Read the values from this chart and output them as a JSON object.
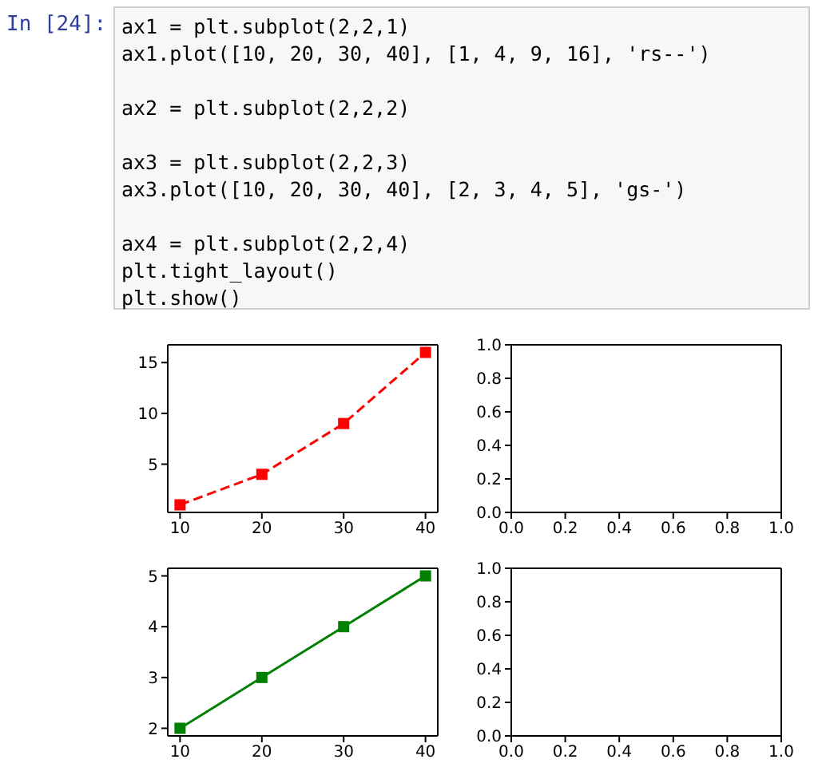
{
  "chart_data": [
    {
      "type": "line",
      "x": [
        10,
        20,
        30,
        40
      ],
      "series": [
        {
          "color": "#ff0000",
          "values": [
            1,
            4,
            9,
            16
          ]
        }
      ],
      "marker": "square",
      "line_style": "dashed",
      "xlim": [
        8.5,
        41.5
      ],
      "xticks": [
        10,
        20,
        30,
        40
      ],
      "ylim": [
        0.25,
        16.75
      ],
      "yticks": [
        5,
        10,
        15
      ],
      "grid": false,
      "legend": false,
      "annotations": [
        "In [24]:",
        "ax1 = plt.subplot(2,2,1)\nax1.plot([10, 20, 30, 40], [1, 4, 9, 16], 'rs--')\n\nax2 = plt.subplot(2,2,2)\n\nax3 = plt.subplot(2,2,3)\nax3.plot([10, 20, 30, 40], [2, 3, 4, 5], 'gs-')\n\nax4 = plt.subplot(2,2,4)\nplt.tight_layout()\nplt.show()"
      ]
    },
    {
      "type": "line",
      "xlim": [
        0,
        1
      ],
      "xticks": [
        {
          "value": 0,
          "label": "0.0"
        },
        {
          "value": 0.2,
          "label": "0.2"
        },
        {
          "value": 0.4,
          "label": "0.4"
        },
        {
          "value": 0.6,
          "label": "0.6"
        },
        {
          "value": 0.8,
          "label": "0.8"
        },
        {
          "value": 1,
          "label": "1.0"
        }
      ],
      "ylim": [
        0,
        1
      ],
      "yticks": [
        {
          "value": 0,
          "label": "0.0"
        },
        {
          "value": 0.2,
          "label": "0.2"
        },
        {
          "value": 0.4,
          "label": "0.4"
        },
        {
          "value": 0.6,
          "label": "0.6"
        },
        {
          "value": 0.8,
          "label": "0.8"
        },
        {
          "value": 1,
          "label": "1.0"
        }
      ],
      "grid": false,
      "legend": false
    },
    {
      "type": "line",
      "x": [
        10,
        20,
        30,
        40
      ],
      "series": [
        {
          "color": "#008000",
          "values": [
            2,
            3,
            4,
            5
          ]
        }
      ],
      "marker": "square",
      "line_style": "solid",
      "xlim": [
        8.5,
        41.5
      ],
      "xticks": [
        10,
        20,
        30,
        40
      ],
      "ylim": [
        1.85,
        5.15
      ],
      "yticks": [
        2,
        3,
        4,
        5
      ],
      "grid": false,
      "legend": false
    },
    {
      "type": "line",
      "xlim": [
        0,
        1
      ],
      "xticks": [
        {
          "value": 0,
          "label": "0.0"
        },
        {
          "value": 0.2,
          "label": "0.2"
        },
        {
          "value": 0.4,
          "label": "0.4"
        },
        {
          "value": 0.6,
          "label": "0.6"
        },
        {
          "value": 0.8,
          "label": "0.8"
        },
        {
          "value": 1,
          "label": "1.0"
        }
      ],
      "ylim": [
        0,
        1
      ],
      "yticks": [
        {
          "value": 0,
          "label": "0.0"
        },
        {
          "value": 0.2,
          "label": "0.2"
        },
        {
          "value": 0.4,
          "label": "0.4"
        },
        {
          "value": 0.6,
          "label": "0.6"
        },
        {
          "value": 0.8,
          "label": "0.8"
        },
        {
          "value": 1,
          "label": "1.0"
        }
      ],
      "grid": false,
      "legend": false
    }
  ]
}
